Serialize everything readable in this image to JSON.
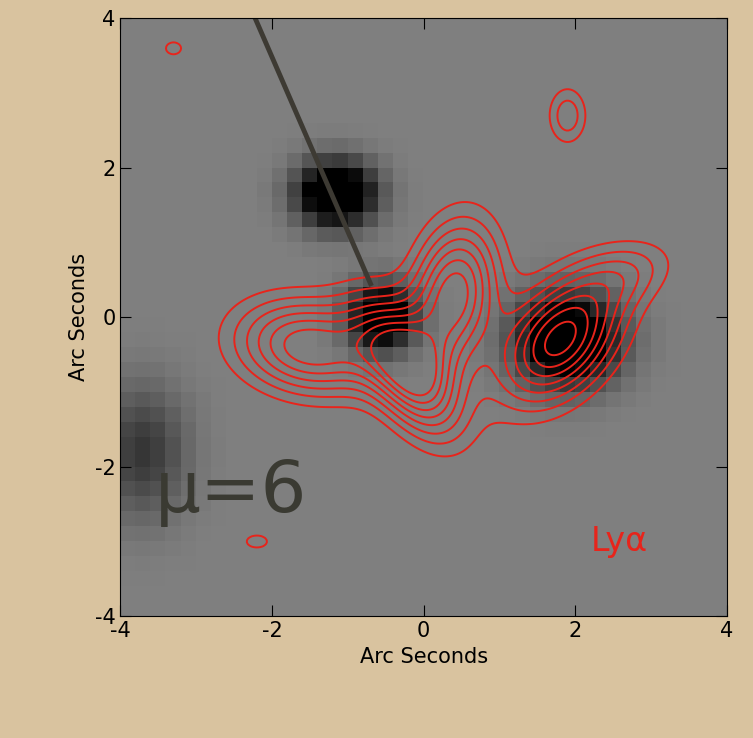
{
  "chart_data": {
    "type": "image_contour",
    "xlabel": "Arc Seconds",
    "ylabel": "Arc Seconds",
    "xlim": [
      -4,
      4
    ],
    "ylim": [
      -4,
      4
    ],
    "xticks": [
      -4,
      -2,
      0,
      2,
      4
    ],
    "yticks": [
      -4,
      -2,
      0,
      2,
      4
    ],
    "annotations": [
      {
        "text": "μ=6",
        "x": -3.55,
        "y": -2.35,
        "color": "#3a3a32"
      },
      {
        "text": "Lyα",
        "x": 2.2,
        "y": -3.0,
        "color": "#e8241b"
      }
    ],
    "pointer": {
      "x": [
        -2.35,
        -0.7
      ],
      "y": [
        4.3,
        0.45
      ],
      "color": "#3d3a33"
    },
    "image": {
      "pixel": 0.2,
      "vmin": -0.6,
      "vmax": 0.6,
      "sources": [
        {
          "x": -1.15,
          "y": 1.65,
          "sx": 0.35,
          "sy": 0.3,
          "amp": 1.0
        },
        {
          "x": -0.55,
          "y": 0.0,
          "sx": 0.3,
          "sy": 0.3,
          "amp": 0.9
        },
        {
          "x": 1.9,
          "y": -0.3,
          "sx": 0.45,
          "sy": 0.4,
          "amp": 1.0
        },
        {
          "x": -3.7,
          "y": -1.8,
          "sx": 0.4,
          "sy": 0.6,
          "amp": 0.35
        }
      ]
    },
    "contours": {
      "name": "Lyα",
      "color": "#e8241b",
      "levels": [
        0.2,
        0.32,
        0.44,
        0.56,
        0.68,
        0.8,
        0.92,
        1.04
      ],
      "components": [
        {
          "x": -1.5,
          "y": -0.4,
          "sx": 0.7,
          "sy": 0.45,
          "angle": -10,
          "amp": 0.9
        },
        {
          "x": -0.2,
          "y": -0.7,
          "sx": 0.35,
          "sy": 0.7,
          "angle": 30,
          "amp": 1.0
        },
        {
          "x": 0.4,
          "y": 0.3,
          "sx": 0.4,
          "sy": 0.7,
          "angle": -10,
          "amp": 1.0
        },
        {
          "x": 1.8,
          "y": -0.3,
          "sx": 0.45,
          "sy": 0.7,
          "angle": -40,
          "amp": 1.1
        },
        {
          "x": 2.7,
          "y": 0.6,
          "sx": 0.5,
          "sy": 0.3,
          "angle": 20,
          "amp": 0.3
        },
        {
          "x": 1.9,
          "y": 2.7,
          "sx": 0.2,
          "sy": 0.3,
          "angle": 0,
          "amp": 0.4
        },
        {
          "x": -3.3,
          "y": 3.6,
          "sx": 0.15,
          "sy": 0.12,
          "angle": 0,
          "amp": 0.25
        },
        {
          "x": -2.2,
          "y": -3.0,
          "sx": 0.2,
          "sy": 0.12,
          "angle": 0,
          "amp": 0.25
        }
      ]
    }
  }
}
